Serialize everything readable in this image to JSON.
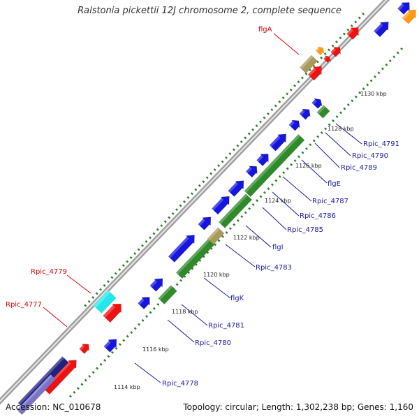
{
  "title": "Ralstonia pickettii 12J chromosome 2, complete sequence",
  "footer": {
    "accession": "Accession: NC_010678",
    "summary": "Topology: circular; Length: 1,302,238 bp; Genes: 1,160"
  },
  "colors": {
    "backbone": "#a0a0a0",
    "tick": "#2e7d2e",
    "blue": "#1515dd",
    "green": "#2f8a2a",
    "red": "#ee1111",
    "cyan": "#22e8ee",
    "khaki": "#a89a58",
    "orange": "#ff9a10",
    "navy": "#202080",
    "label_red": "#e00000",
    "label_blue": "#1a1aa8"
  },
  "tick_labels": [
    "1114 kbp",
    "1116 kbp",
    "1118 kbp",
    "1120 kbp",
    "1122 kbp",
    "1124 kbp",
    "1126 kbp",
    "1128 kbp",
    "1130 kbp"
  ],
  "gene_labels_top": [
    "flgA",
    "Rpic_4779",
    "Rpic_4777"
  ],
  "gene_labels_right": [
    "Rpic_4791",
    "Rpic_4790",
    "Rpic_4789",
    "flgE",
    "Rpic_4787",
    "Rpic_4786",
    "Rpic_4785",
    "flgI",
    "Rpic_4783",
    "flgK",
    "Rpic_4781",
    "Rpic_4780",
    "Rpic_4778"
  ]
}
